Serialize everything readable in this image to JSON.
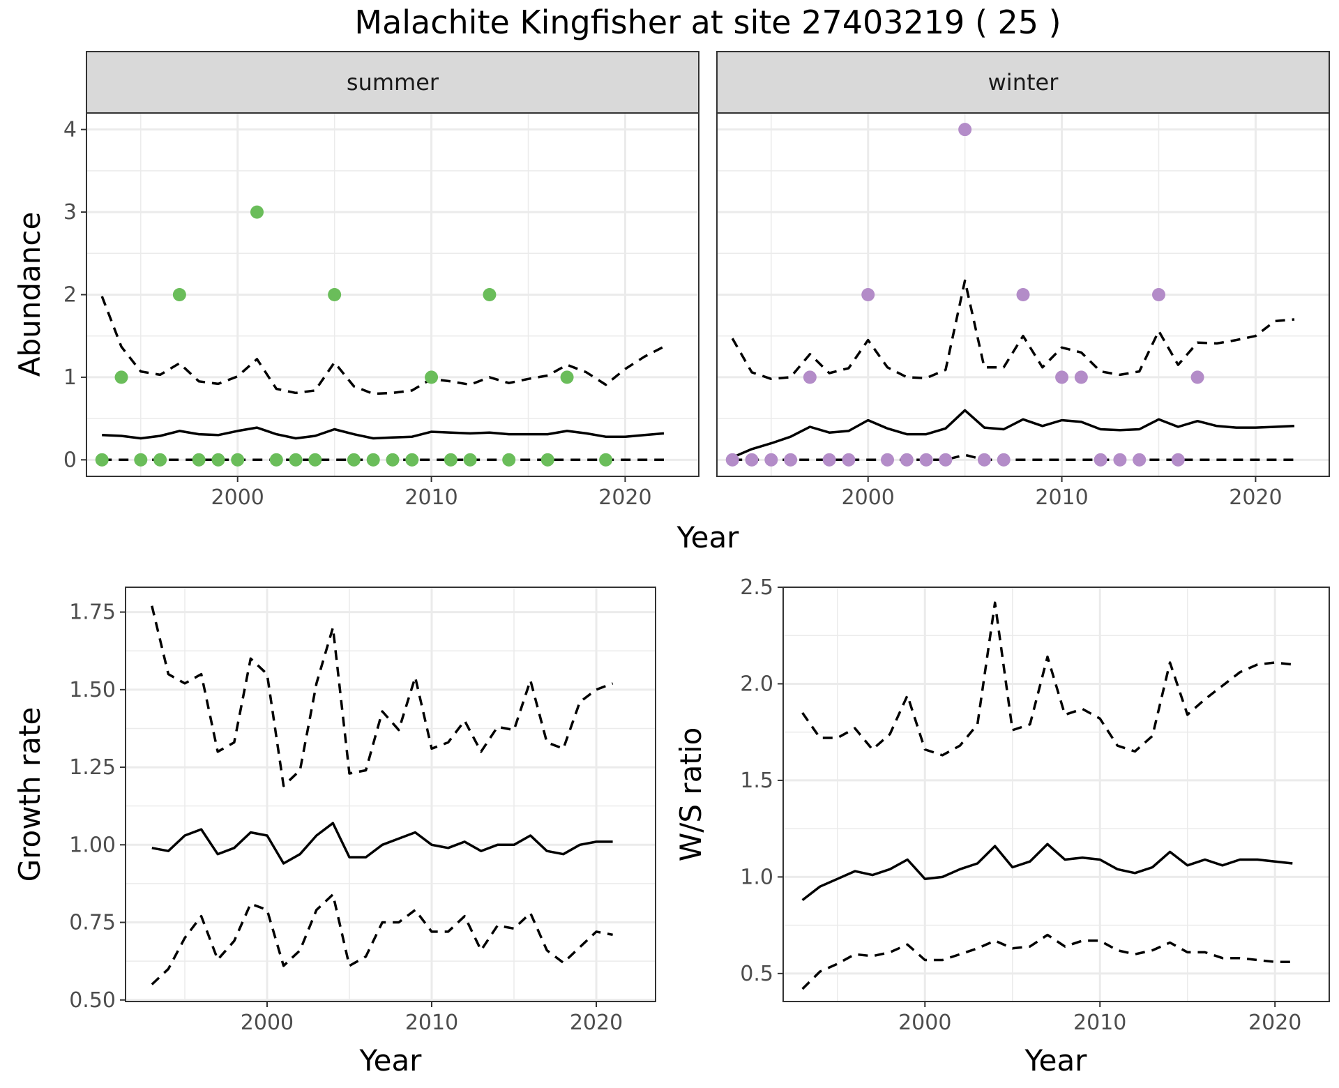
{
  "title": "Malachite Kingfisher at site 27403219 ( 25 )",
  "colors": {
    "summer": "#6abd5a",
    "winter": "#b38cc8",
    "line": "#000000"
  },
  "chart_data": [
    {
      "type": "scatter",
      "panel": "summer",
      "strip_label": "summer",
      "xlabel": "Year",
      "ylabel": "Abundance",
      "xlim": [
        1992.2,
        2023.8
      ],
      "ylim": [
        -0.2,
        4.2
      ],
      "xticks": [
        2000,
        2010,
        2020
      ],
      "yticks": [
        0,
        1,
        2,
        3,
        4
      ],
      "points": {
        "x": [
          1993,
          1994,
          1995,
          1996,
          1997,
          1998,
          1999,
          2000,
          2001,
          2002,
          2003,
          2004,
          2005,
          2006,
          2007,
          2008,
          2009,
          2010,
          2011,
          2012,
          2013,
          2014,
          2016,
          2017,
          2019
        ],
        "y": [
          0,
          1,
          0,
          0,
          2,
          0,
          0,
          0,
          3,
          0,
          0,
          0,
          2,
          0,
          0,
          0,
          0,
          1,
          0,
          0,
          2,
          0,
          0,
          1,
          0
        ]
      },
      "series": [
        {
          "name": "mean",
          "x": [
            1993,
            1994,
            1995,
            1996,
            1997,
            1998,
            1999,
            2000,
            2001,
            2002,
            2003,
            2004,
            2005,
            2006,
            2007,
            2008,
            2009,
            2010,
            2011,
            2012,
            2013,
            2014,
            2015,
            2016,
            2017,
            2018,
            2019,
            2020,
            2021,
            2022
          ],
          "values": [
            0.3,
            0.29,
            0.26,
            0.29,
            0.35,
            0.31,
            0.3,
            0.35,
            0.39,
            0.31,
            0.26,
            0.29,
            0.37,
            0.31,
            0.26,
            0.27,
            0.28,
            0.34,
            0.33,
            0.32,
            0.33,
            0.31,
            0.31,
            0.31,
            0.35,
            0.32,
            0.28,
            0.28,
            0.3,
            0.32
          ]
        },
        {
          "name": "upper",
          "x": [
            1993,
            1994,
            1995,
            1996,
            1997,
            1998,
            1999,
            2000,
            2001,
            2002,
            2003,
            2004,
            2005,
            2006,
            2007,
            2008,
            2009,
            2010,
            2011,
            2012,
            2013,
            2014,
            2015,
            2016,
            2017,
            2018,
            2019,
            2020,
            2021,
            2022
          ],
          "values": [
            1.98,
            1.37,
            1.07,
            1.03,
            1.17,
            0.95,
            0.92,
            1.01,
            1.22,
            0.86,
            0.81,
            0.84,
            1.18,
            0.89,
            0.8,
            0.81,
            0.84,
            0.98,
            0.95,
            0.91,
            1.0,
            0.93,
            0.98,
            1.02,
            1.15,
            1.06,
            0.91,
            1.1,
            1.25,
            1.37
          ]
        },
        {
          "name": "lower",
          "x": [
            1993,
            2022
          ],
          "values": [
            0,
            0
          ]
        }
      ]
    },
    {
      "type": "scatter",
      "panel": "winter",
      "strip_label": "winter",
      "xlabel": "Year",
      "ylabel": "Abundance",
      "xlim": [
        1992.2,
        2023.8
      ],
      "ylim": [
        -0.2,
        4.2
      ],
      "xticks": [
        2000,
        2010,
        2020
      ],
      "yticks": [
        0,
        1,
        2,
        3,
        4
      ],
      "points": {
        "x": [
          1993,
          1994,
          1995,
          1996,
          1997,
          1998,
          1999,
          2000,
          2001,
          2002,
          2003,
          2004,
          2005,
          2006,
          2007,
          2008,
          2010,
          2011,
          2012,
          2013,
          2014,
          2015,
          2016,
          2017
        ],
        "y": [
          0,
          0,
          0,
          0,
          1,
          0,
          0,
          2,
          0,
          0,
          0,
          0,
          4,
          0,
          0,
          2,
          1,
          1,
          0,
          0,
          0,
          2,
          0,
          1
        ]
      },
      "series": [
        {
          "name": "mean",
          "x": [
            1993,
            1994,
            1995,
            1996,
            1997,
            1998,
            1999,
            2000,
            2001,
            2002,
            2003,
            2004,
            2005,
            2006,
            2007,
            2008,
            2009,
            2010,
            2011,
            2012,
            2013,
            2014,
            2015,
            2016,
            2017,
            2018,
            2019,
            2020,
            2021,
            2022
          ],
          "values": [
            0.03,
            0.13,
            0.2,
            0.28,
            0.4,
            0.33,
            0.35,
            0.48,
            0.38,
            0.31,
            0.31,
            0.38,
            0.6,
            0.39,
            0.37,
            0.49,
            0.41,
            0.48,
            0.46,
            0.37,
            0.36,
            0.37,
            0.49,
            0.4,
            0.47,
            0.41,
            0.39,
            0.39,
            0.4,
            0.41
          ]
        },
        {
          "name": "upper",
          "x": [
            1993,
            1994,
            1995,
            1996,
            1997,
            1998,
            1999,
            2000,
            2001,
            2002,
            2003,
            2004,
            2005,
            2006,
            2007,
            2008,
            2009,
            2010,
            2011,
            2012,
            2013,
            2014,
            2015,
            2016,
            2017,
            2018,
            2019,
            2020,
            2021,
            2022
          ],
          "values": [
            1.47,
            1.06,
            0.98,
            1.0,
            1.28,
            1.05,
            1.11,
            1.45,
            1.12,
            1.0,
            0.99,
            1.09,
            2.17,
            1.12,
            1.12,
            1.5,
            1.12,
            1.36,
            1.3,
            1.07,
            1.03,
            1.07,
            1.56,
            1.15,
            1.42,
            1.41,
            1.45,
            1.5,
            1.68,
            1.7
          ]
        },
        {
          "name": "lower",
          "x": [
            1993,
            2004,
            2005,
            2006,
            2022
          ],
          "values": [
            0,
            0,
            0.06,
            0,
            0
          ]
        }
      ]
    },
    {
      "type": "line",
      "panel": "growth",
      "xlabel": "Year",
      "ylabel": "Growth rate",
      "xlim": [
        1991.4,
        2023.6
      ],
      "ylim": [
        0.495,
        1.83
      ],
      "xticks": [
        2000,
        2010,
        2020
      ],
      "yticks": [
        0.5,
        0.75,
        1.0,
        1.25,
        1.5,
        1.75
      ],
      "ytick_labels": [
        "0.50",
        "0.75",
        "1.00",
        "1.25",
        "1.50",
        "1.75"
      ],
      "series": [
        {
          "name": "mean",
          "x": [
            1993,
            1994,
            1995,
            1996,
            1997,
            1998,
            1999,
            2000,
            2001,
            2002,
            2003,
            2004,
            2005,
            2006,
            2007,
            2008,
            2009,
            2010,
            2011,
            2012,
            2013,
            2014,
            2015,
            2016,
            2017,
            2018,
            2019,
            2020,
            2021
          ],
          "values": [
            0.99,
            0.98,
            1.03,
            1.05,
            0.97,
            0.99,
            1.04,
            1.03,
            0.94,
            0.97,
            1.03,
            1.07,
            0.96,
            0.96,
            1.0,
            1.02,
            1.04,
            1.0,
            0.99,
            1.01,
            0.98,
            1.0,
            1.0,
            1.03,
            0.98,
            0.97,
            1.0,
            1.01,
            1.01
          ]
        },
        {
          "name": "upper",
          "x": [
            1993,
            1994,
            1995,
            1996,
            1997,
            1998,
            1999,
            2000,
            2001,
            2002,
            2003,
            2004,
            2005,
            2006,
            2007,
            2008,
            2009,
            2010,
            2011,
            2012,
            2013,
            2014,
            2015,
            2016,
            2017,
            2018,
            2019,
            2020,
            2021
          ],
          "values": [
            1.77,
            1.55,
            1.52,
            1.55,
            1.3,
            1.33,
            1.6,
            1.55,
            1.19,
            1.24,
            1.52,
            1.7,
            1.23,
            1.24,
            1.43,
            1.37,
            1.54,
            1.31,
            1.33,
            1.4,
            1.3,
            1.38,
            1.37,
            1.53,
            1.33,
            1.31,
            1.46,
            1.5,
            1.52
          ]
        },
        {
          "name": "lower",
          "x": [
            1993,
            1994,
            1995,
            1996,
            1997,
            1998,
            1999,
            2000,
            2001,
            2002,
            2003,
            2004,
            2005,
            2006,
            2007,
            2008,
            2009,
            2010,
            2011,
            2012,
            2013,
            2014,
            2015,
            2016,
            2017,
            2018,
            2019,
            2020,
            2021
          ],
          "values": [
            0.55,
            0.6,
            0.7,
            0.77,
            0.63,
            0.69,
            0.81,
            0.79,
            0.61,
            0.66,
            0.79,
            0.84,
            0.61,
            0.64,
            0.75,
            0.75,
            0.79,
            0.72,
            0.72,
            0.77,
            0.66,
            0.74,
            0.73,
            0.78,
            0.66,
            0.62,
            0.67,
            0.72,
            0.71
          ]
        }
      ]
    },
    {
      "type": "line",
      "panel": "ws_ratio",
      "xlabel": "Year",
      "ylabel": "W/S ratio",
      "xlim": [
        1991.9,
        2023.1
      ],
      "ylim": [
        0.355,
        2.5
      ],
      "xticks": [
        2000,
        2010,
        2020
      ],
      "yticks": [
        0.5,
        1.0,
        1.5,
        2.0,
        2.5
      ],
      "ytick_labels": [
        "0.5",
        "1.0",
        "1.5",
        "2.0",
        "2.5"
      ],
      "series": [
        {
          "name": "mean",
          "x": [
            1993,
            1994,
            1995,
            1996,
            1997,
            1998,
            1999,
            2000,
            2001,
            2002,
            2003,
            2004,
            2005,
            2006,
            2007,
            2008,
            2009,
            2010,
            2011,
            2012,
            2013,
            2014,
            2015,
            2016,
            2017,
            2018,
            2019,
            2020,
            2021
          ],
          "values": [
            0.88,
            0.95,
            0.99,
            1.03,
            1.01,
            1.04,
            1.09,
            0.99,
            1.0,
            1.04,
            1.07,
            1.16,
            1.05,
            1.08,
            1.17,
            1.09,
            1.1,
            1.09,
            1.04,
            1.02,
            1.05,
            1.13,
            1.06,
            1.09,
            1.06,
            1.09,
            1.09,
            1.08,
            1.07
          ]
        },
        {
          "name": "upper",
          "x": [
            1993,
            1994,
            1995,
            1996,
            1997,
            1998,
            1999,
            2000,
            2001,
            2002,
            2003,
            2004,
            2005,
            2006,
            2007,
            2008,
            2009,
            2010,
            2011,
            2012,
            2013,
            2014,
            2015,
            2016,
            2017,
            2018,
            2019,
            2020,
            2021
          ],
          "values": [
            1.85,
            1.72,
            1.72,
            1.77,
            1.66,
            1.74,
            1.94,
            1.66,
            1.63,
            1.68,
            1.79,
            2.42,
            1.76,
            1.79,
            2.14,
            1.84,
            1.87,
            1.82,
            1.68,
            1.65,
            1.73,
            2.11,
            1.84,
            1.92,
            1.99,
            2.06,
            2.1,
            2.11,
            2.1
          ]
        },
        {
          "name": "lower",
          "x": [
            1993,
            1994,
            1995,
            1996,
            1997,
            1998,
            1999,
            2000,
            2001,
            2002,
            2003,
            2004,
            2005,
            2006,
            2007,
            2008,
            2009,
            2010,
            2011,
            2012,
            2013,
            2014,
            2015,
            2016,
            2017,
            2018,
            2019,
            2020,
            2021
          ],
          "values": [
            0.42,
            0.51,
            0.55,
            0.6,
            0.59,
            0.61,
            0.65,
            0.57,
            0.57,
            0.6,
            0.63,
            0.67,
            0.63,
            0.64,
            0.7,
            0.64,
            0.67,
            0.67,
            0.62,
            0.6,
            0.62,
            0.66,
            0.61,
            0.61,
            0.58,
            0.58,
            0.57,
            0.56,
            0.56
          ]
        }
      ]
    }
  ]
}
